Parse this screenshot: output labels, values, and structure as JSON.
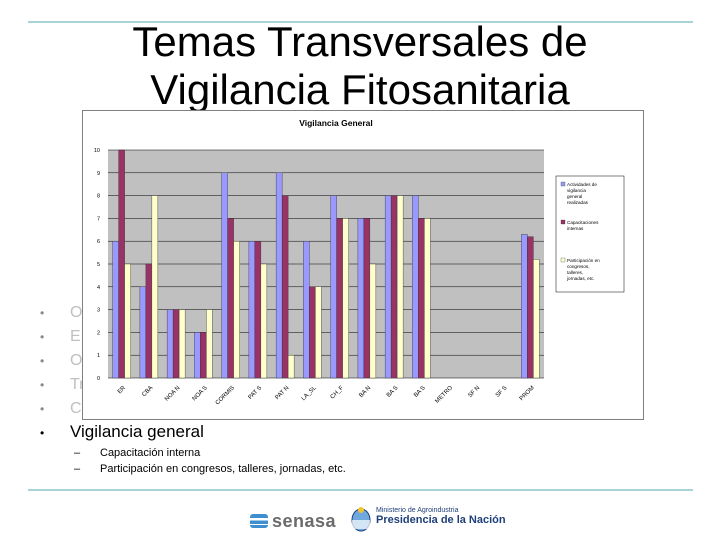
{
  "slide": {
    "title_line1": "Temas Transversales de",
    "title_line2": "Vigilancia Fitosanitaria",
    "faded_bullets": [
      "O",
      "E",
      "O",
      "Tr",
      "C"
    ],
    "main_bullet": "Vigilancia general",
    "sub_bullets": [
      "Capacitación interna",
      "Participación en congresos, talleres, jornadas, etc."
    ],
    "footer": {
      "brand": "senasa",
      "ministry_line1": "Ministerio de Agroindustria",
      "ministry_line2": "Presidencia de la Nación"
    }
  },
  "colors": {
    "rule": "#a9d3d8",
    "series1": "#9999ff",
    "series2": "#993366",
    "series3": "#ffffcc",
    "plot_bg": "#c0c0c0"
  },
  "chart_data": {
    "type": "bar",
    "title": "Vigilancia General",
    "categories": [
      "ER",
      "CBA",
      "NOA N",
      "NOA S",
      "CORMIS",
      "PAT S",
      "PAT N",
      "LA_SL",
      "CH_F",
      "BA N",
      "BA S",
      "BA S",
      "METRO",
      "SF N",
      "SF S",
      "PROM"
    ],
    "ylim": [
      0,
      10
    ],
    "yticks": [
      0,
      1,
      2,
      3,
      4,
      5,
      6,
      7,
      8,
      9,
      10
    ],
    "grid": true,
    "legend_position": "right",
    "series": [
      {
        "name": "Actividades de vigilancia general realizadas",
        "values": [
          6,
          4,
          3,
          2,
          9,
          6,
          9,
          6,
          8,
          7,
          8,
          8,
          0,
          0,
          0,
          6.3
        ]
      },
      {
        "name": "Capacitaciones internas",
        "values": [
          10,
          5,
          3,
          2,
          7,
          6,
          8,
          4,
          7,
          7,
          8,
          7,
          0,
          0,
          0,
          6.2
        ]
      },
      {
        "name": "Participación en congresos, talleres, jornadas, etc.",
        "values": [
          5,
          8,
          3,
          3,
          6,
          5,
          1,
          4,
          7,
          5,
          8,
          7,
          0,
          0,
          0,
          5.2
        ]
      }
    ]
  }
}
